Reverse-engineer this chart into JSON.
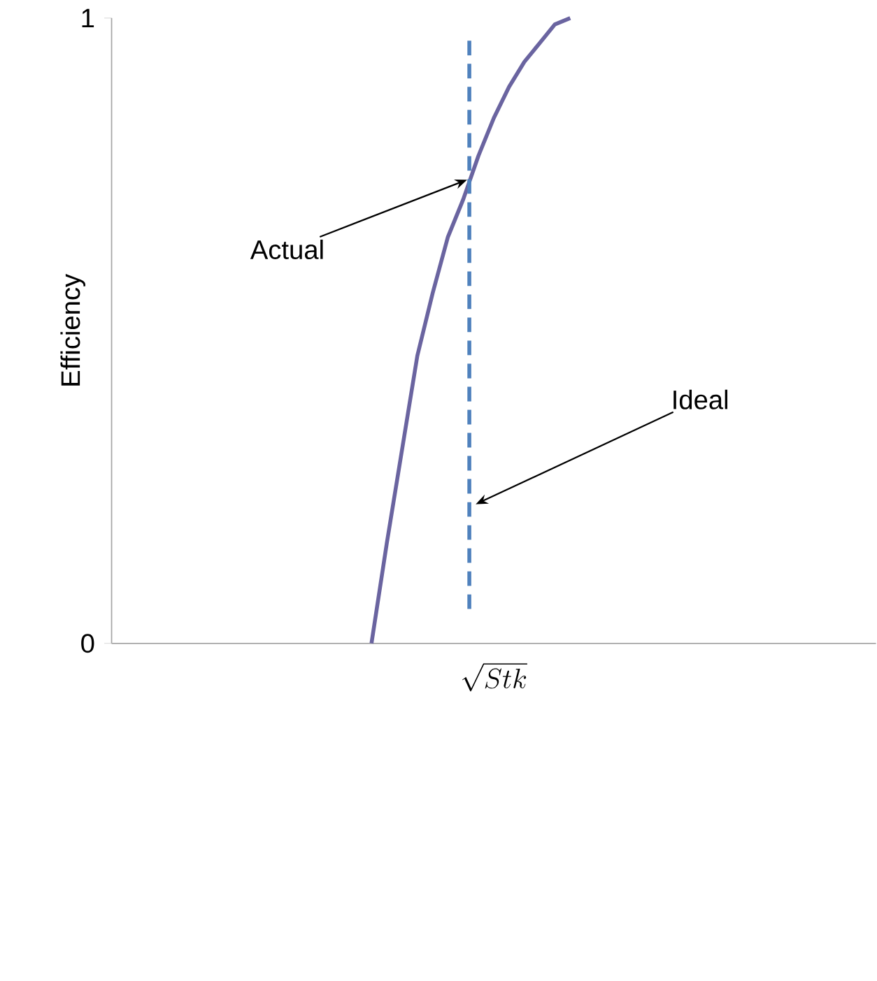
{
  "chart_data": {
    "type": "line",
    "xlabel": "\\sqrt{Stk}",
    "ylabel": "Efficiency",
    "categories": [
      null,
      null,
      null,
      null,
      null,
      null,
      null,
      null,
      null,
      null,
      null,
      null,
      null,
      null,
      null,
      null,
      null,
      null,
      null,
      null,
      null,
      null,
      null,
      null,
      null,
      null,
      null,
      null,
      null,
      null,
      null,
      null,
      null,
      null,
      null,
      null,
      null,
      null,
      null,
      null,
      null,
      null,
      null,
      null,
      null,
      null,
      null,
      null,
      null,
      null,
      null
    ],
    "ylim": [
      0,
      1
    ],
    "yticks": [
      0,
      1
    ],
    "tick_labels": "y",
    "series": [
      {
        "name": "Actual",
        "color": "#6a64a0",
        "values": [
          null,
          null,
          null,
          null,
          null,
          null,
          null,
          null,
          null,
          null,
          null,
          null,
          null,
          null,
          null,
          null,
          null,
          0,
          0.16,
          0.31,
          0.46,
          0.56,
          0.65,
          0.71,
          0.78,
          0.84,
          0.89,
          0.93,
          0.96,
          0.99,
          1.0,
          null,
          null,
          null,
          null,
          null,
          null,
          null,
          null,
          null,
          null,
          null,
          null,
          null,
          null,
          null,
          null,
          null,
          null,
          null,
          null
        ]
      }
    ],
    "annotations": [
      "Ideal"
    ]
  }
}
